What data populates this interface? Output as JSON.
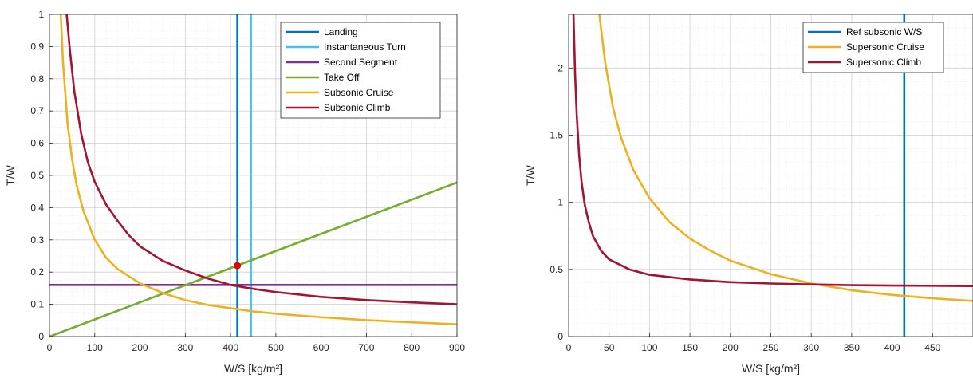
{
  "chart_data": [
    {
      "type": "line",
      "xlabel": "W/S [kg/m²]",
      "ylabel": "T/W",
      "xlim": [
        0,
        900
      ],
      "ylim": [
        0,
        1
      ],
      "xticks": [
        "0",
        "100",
        "200",
        "300",
        "400",
        "500",
        "600",
        "700",
        "800",
        "900"
      ],
      "yticks": [
        "0",
        "0.1",
        "0.2",
        "0.3",
        "0.4",
        "0.5",
        "0.6",
        "0.7",
        "0.8",
        "0.9",
        "1"
      ],
      "grid": true,
      "legend_position": "top-right",
      "series": [
        {
          "name": "Landing",
          "color": "#0072BD",
          "kind": "vertical",
          "x": 415
        },
        {
          "name": "Instantaneous Turn",
          "color": "#4DBEEE",
          "kind": "vertical",
          "x": 445
        },
        {
          "name": "Second Segment",
          "color": "#7E2F8E",
          "kind": "horizontal",
          "y": 0.16
        },
        {
          "name": "Take Off",
          "color": "#77AC30",
          "kind": "line",
          "points": [
            [
              0,
              0
            ],
            [
              900,
              0.478
            ]
          ]
        },
        {
          "name": "Subsonic Cruise",
          "color": "#EDB120",
          "kind": "curve",
          "points": [
            [
              25,
              1.0
            ],
            [
              30,
              0.85
            ],
            [
              40,
              0.66
            ],
            [
              50,
              0.55
            ],
            [
              60,
              0.47
            ],
            [
              75,
              0.39
            ],
            [
              100,
              0.3
            ],
            [
              125,
              0.245
            ],
            [
              150,
              0.21
            ],
            [
              200,
              0.165
            ],
            [
              250,
              0.135
            ],
            [
              300,
              0.113
            ],
            [
              350,
              0.098
            ],
            [
              400,
              0.088
            ],
            [
              450,
              0.078
            ],
            [
              500,
              0.071
            ],
            [
              600,
              0.06
            ],
            [
              700,
              0.051
            ],
            [
              800,
              0.044
            ],
            [
              900,
              0.038
            ]
          ]
        },
        {
          "name": "Subsonic Climb",
          "color": "#A2142F",
          "kind": "curve",
          "points": [
            [
              38,
              1.0
            ],
            [
              45,
              0.89
            ],
            [
              55,
              0.76
            ],
            [
              70,
              0.63
            ],
            [
              85,
              0.54
            ],
            [
              100,
              0.48
            ],
            [
              125,
              0.41
            ],
            [
              150,
              0.36
            ],
            [
              175,
              0.315
            ],
            [
              200,
              0.28
            ],
            [
              250,
              0.235
            ],
            [
              300,
              0.205
            ],
            [
              350,
              0.18
            ],
            [
              400,
              0.16
            ],
            [
              450,
              0.148
            ],
            [
              500,
              0.138
            ],
            [
              600,
              0.123
            ],
            [
              700,
              0.113
            ],
            [
              800,
              0.106
            ],
            [
              900,
              0.1
            ]
          ]
        }
      ],
      "design_point": {
        "x": 415,
        "y": 0.22,
        "color": "#E00000"
      }
    },
    {
      "type": "line",
      "xlabel": "W/S [kg/m²]",
      "ylabel": "T/W",
      "xlim": [
        0,
        500
      ],
      "ylim": [
        0,
        2.4
      ],
      "xticks": [
        "0",
        "50",
        "100",
        "150",
        "200",
        "250",
        "300",
        "350",
        "400",
        "450"
      ],
      "yticks": [
        "0",
        "0.5",
        "1",
        "1.5",
        "2"
      ],
      "grid": true,
      "legend_position": "top-right",
      "series": [
        {
          "name": "Ref subsonic W/S",
          "color": "#0072BD",
          "kind": "vertical",
          "x": 415
        },
        {
          "name": "Supersonic Cruise",
          "color": "#EDB120",
          "kind": "curve",
          "points": [
            [
              38,
              2.4
            ],
            [
              45,
              2.05
            ],
            [
              55,
              1.7
            ],
            [
              65,
              1.48
            ],
            [
              80,
              1.24
            ],
            [
              100,
              1.03
            ],
            [
              125,
              0.85
            ],
            [
              150,
              0.73
            ],
            [
              175,
              0.64
            ],
            [
              200,
              0.565
            ],
            [
              250,
              0.465
            ],
            [
              300,
              0.395
            ],
            [
              350,
              0.345
            ],
            [
              400,
              0.31
            ],
            [
              450,
              0.285
            ],
            [
              500,
              0.265
            ]
          ]
        },
        {
          "name": "Supersonic Climb",
          "color": "#A2142F",
          "kind": "curve",
          "points": [
            [
              6,
              2.4
            ],
            [
              8,
              1.95
            ],
            [
              10,
              1.65
            ],
            [
              13,
              1.35
            ],
            [
              16,
              1.15
            ],
            [
              20,
              0.98
            ],
            [
              25,
              0.85
            ],
            [
              30,
              0.75
            ],
            [
              40,
              0.64
            ],
            [
              50,
              0.575
            ],
            [
              75,
              0.5
            ],
            [
              100,
              0.46
            ],
            [
              150,
              0.425
            ],
            [
              200,
              0.405
            ],
            [
              250,
              0.395
            ],
            [
              300,
              0.388
            ],
            [
              350,
              0.383
            ],
            [
              400,
              0.38
            ],
            [
              450,
              0.378
            ],
            [
              500,
              0.376
            ]
          ]
        }
      ]
    }
  ]
}
